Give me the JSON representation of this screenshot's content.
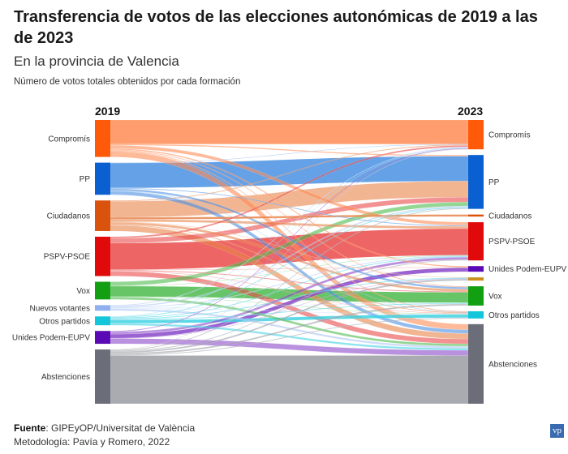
{
  "chart_data": {
    "type": "sankey",
    "title": "Transferencia de votos de las elecciones autonómicas de 2019 a las de 2023",
    "subtitle": "En la provincia de Valencia",
    "description": "Número de votos totales obtenidos por cada formación",
    "left_header": "2019",
    "right_header": "2023",
    "units": "relative vote share (estimated, arbitrary units)",
    "left_nodes": [
      {
        "id": "L_compromis",
        "label": "Compromís",
        "color": "#ff5a0a",
        "link_color": "#ff8c55"
      },
      {
        "id": "L_pp",
        "label": "PP",
        "color": "#0a5fd1",
        "link_color": "#4a90e2"
      },
      {
        "id": "L_cs",
        "label": "Ciudadanos",
        "color": "#d9530f",
        "link_color": "#e8844a"
      },
      {
        "id": "L_psoe",
        "label": "PSPV-PSOE",
        "color": "#e00a0a",
        "link_color": "#ea4a4a"
      },
      {
        "id": "L_vox",
        "label": "Vox",
        "color": "#12a012",
        "link_color": "#4cbb4c"
      },
      {
        "id": "L_nuevos",
        "label": "Nuevos votantes",
        "color": "#8fb0ee",
        "link_color": "#aec6f3"
      },
      {
        "id": "L_otros",
        "label": "Otros partidos",
        "color": "#13c6d9",
        "link_color": "#3fd2e2"
      },
      {
        "id": "L_unides",
        "label": "Unides Podem-EUPV",
        "color": "#5a0bb5",
        "link_color": "#8a47c9"
      },
      {
        "id": "L_abst",
        "label": "Abstenciones",
        "color": "#6b6e78",
        "link_color": "#9a9ca3"
      }
    ],
    "right_nodes": [
      {
        "id": "R_compromis",
        "label": "Compromís",
        "color": "#ff5a0a"
      },
      {
        "id": "R_pp",
        "label": "PP",
        "color": "#0a5fd1"
      },
      {
        "id": "R_cs",
        "label": "Ciudadanos",
        "color": "#d9530f"
      },
      {
        "id": "R_psoe",
        "label": "PSPV-PSOE",
        "color": "#e00a0a"
      },
      {
        "id": "R_unides",
        "label": "Unides Podem-EUPV",
        "color": "#5a0bb5"
      },
      {
        "id": "R_unlabeled",
        "label": "",
        "color": "#c9901a"
      },
      {
        "id": "R_vox",
        "label": "Vox",
        "color": "#12a012"
      },
      {
        "id": "R_otros",
        "label": "Otros partidos",
        "color": "#13c6d9"
      },
      {
        "id": "R_abst",
        "label": "Abstenciones",
        "color": "#6b6e78"
      }
    ],
    "flows": [
      {
        "from": "L_compromis",
        "to": "R_compromis",
        "value": 30
      },
      {
        "from": "L_compromis",
        "to": "R_pp",
        "value": 1.5
      },
      {
        "from": "L_compromis",
        "to": "R_psoe",
        "value": 4
      },
      {
        "from": "L_compromis",
        "to": "R_unides",
        "value": 1.5
      },
      {
        "from": "L_compromis",
        "to": "R_vox",
        "value": 1
      },
      {
        "from": "L_compromis",
        "to": "R_otros",
        "value": 1
      },
      {
        "from": "L_compromis",
        "to": "R_abst",
        "value": 7
      },
      {
        "from": "L_pp",
        "to": "R_compromis",
        "value": 0.5
      },
      {
        "from": "L_pp",
        "to": "R_pp",
        "value": 31
      },
      {
        "from": "L_pp",
        "to": "R_psoe",
        "value": 1
      },
      {
        "from": "L_pp",
        "to": "R_vox",
        "value": 2.5
      },
      {
        "from": "L_pp",
        "to": "R_otros",
        "value": 0.5
      },
      {
        "from": "L_pp",
        "to": "R_abst",
        "value": 4.5
      },
      {
        "from": "L_cs",
        "to": "R_compromis",
        "value": 1
      },
      {
        "from": "L_cs",
        "to": "R_pp",
        "value": 20
      },
      {
        "from": "L_cs",
        "to": "R_cs",
        "value": 2.5
      },
      {
        "from": "L_cs",
        "to": "R_psoe",
        "value": 3
      },
      {
        "from": "L_cs",
        "to": "R_unlabeled",
        "value": 0.5
      },
      {
        "from": "L_cs",
        "to": "R_vox",
        "value": 3
      },
      {
        "from": "L_cs",
        "to": "R_otros",
        "value": 1
      },
      {
        "from": "L_cs",
        "to": "R_abst",
        "value": 7
      },
      {
        "from": "L_psoe",
        "to": "R_compromis",
        "value": 2
      },
      {
        "from": "L_psoe",
        "to": "R_pp",
        "value": 6
      },
      {
        "from": "L_psoe",
        "to": "R_psoe",
        "value": 33
      },
      {
        "from": "L_psoe",
        "to": "R_unides",
        "value": 0.5
      },
      {
        "from": "L_psoe",
        "to": "R_vox",
        "value": 1
      },
      {
        "from": "L_psoe",
        "to": "R_otros",
        "value": 0.5
      },
      {
        "from": "L_psoe",
        "to": "R_abst",
        "value": 6
      },
      {
        "from": "L_vox",
        "to": "R_pp",
        "value": 5
      },
      {
        "from": "L_vox",
        "to": "R_psoe",
        "value": 0.5
      },
      {
        "from": "L_vox",
        "to": "R_vox",
        "value": 13
      },
      {
        "from": "L_vox",
        "to": "R_otros",
        "value": 0.5
      },
      {
        "from": "L_vox",
        "to": "R_abst",
        "value": 3
      },
      {
        "from": "L_nuevos",
        "to": "R_compromis",
        "value": 1
      },
      {
        "from": "L_nuevos",
        "to": "R_pp",
        "value": 1.5
      },
      {
        "from": "L_nuevos",
        "to": "R_psoe",
        "value": 1
      },
      {
        "from": "L_nuevos",
        "to": "R_vox",
        "value": 0.5
      },
      {
        "from": "L_nuevos",
        "to": "R_otros",
        "value": 0.5
      },
      {
        "from": "L_nuevos",
        "to": "R_abst",
        "value": 2.5
      },
      {
        "from": "L_otros",
        "to": "R_compromis",
        "value": 0.5
      },
      {
        "from": "L_otros",
        "to": "R_pp",
        "value": 1
      },
      {
        "from": "L_otros",
        "to": "R_psoe",
        "value": 1
      },
      {
        "from": "L_otros",
        "to": "R_unlabeled",
        "value": 1
      },
      {
        "from": "L_otros",
        "to": "R_vox",
        "value": 1
      },
      {
        "from": "L_otros",
        "to": "R_otros",
        "value": 4
      },
      {
        "from": "L_otros",
        "to": "R_abst",
        "value": 2.5
      },
      {
        "from": "L_unides",
        "to": "R_compromis",
        "value": 1
      },
      {
        "from": "L_unides",
        "to": "R_psoe",
        "value": 3
      },
      {
        "from": "L_unides",
        "to": "R_unides",
        "value": 5
      },
      {
        "from": "L_unides",
        "to": "R_unlabeled",
        "value": 0.5
      },
      {
        "from": "L_unides",
        "to": "R_abst",
        "value": 6.5
      },
      {
        "from": "L_abst",
        "to": "R_compromis",
        "value": 0.5
      },
      {
        "from": "L_abst",
        "to": "R_pp",
        "value": 1
      },
      {
        "from": "L_abst",
        "to": "R_psoe",
        "value": 1
      },
      {
        "from": "L_abst",
        "to": "R_unlabeled",
        "value": 2
      },
      {
        "from": "L_abst",
        "to": "R_vox",
        "value": 2
      },
      {
        "from": "L_abst",
        "to": "R_otros",
        "value": 1
      },
      {
        "from": "L_abst",
        "to": "R_abst",
        "value": 60
      }
    ]
  },
  "footer": {
    "source_label": "Fuente",
    "source_text": ": GIPEyOP/Universitat de València",
    "methodology": "Metodología: Pavía y Romero, 2022",
    "logo_text": "vp"
  }
}
